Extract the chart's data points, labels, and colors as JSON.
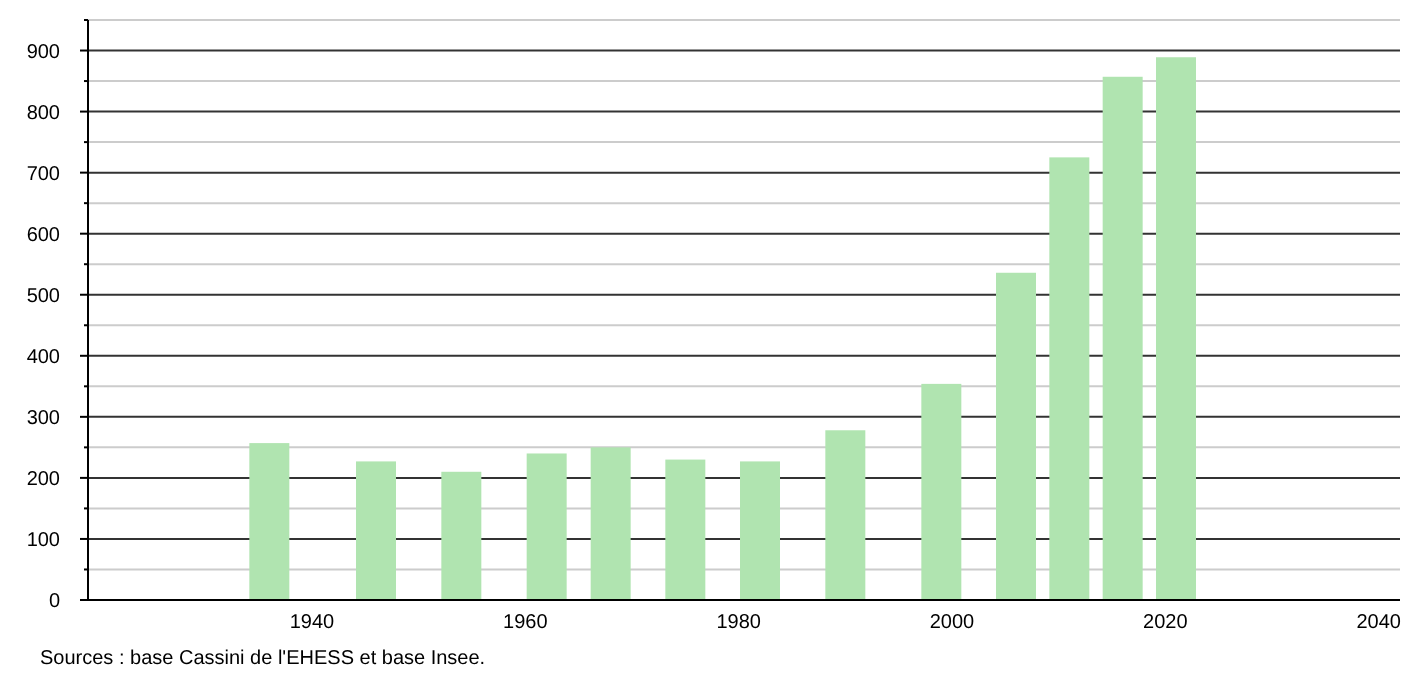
{
  "chart_data": {
    "type": "bar",
    "x": [
      1936,
      1946,
      1954,
      1962,
      1968,
      1975,
      1982,
      1990,
      1999,
      2006,
      2011,
      2016,
      2021
    ],
    "values": [
      257,
      227,
      210,
      240,
      250,
      230,
      227,
      278,
      354,
      536,
      725,
      857,
      889
    ],
    "color": "#b0e4b0",
    "xlim": [
      1919,
      2042
    ],
    "xticks": [
      1940,
      1960,
      1980,
      2000,
      2020,
      2040
    ],
    "ylim": [
      0,
      950
    ],
    "yticks": [
      0,
      {
        "value": 50,
        "label": null
      },
      100,
      {
        "value": 150,
        "label": null
      },
      200,
      {
        "value": 250,
        "label": null
      },
      300,
      {
        "value": 350,
        "label": null
      },
      400,
      {
        "value": 450,
        "label": null
      },
      500,
      {
        "value": 550,
        "label": null
      },
      600,
      {
        "value": 650,
        "label": null
      },
      700,
      {
        "value": 750,
        "label": null
      },
      800,
      {
        "value": 850,
        "label": null
      },
      900,
      {
        "value": 950,
        "label": null
      }
    ],
    "grid": "y",
    "annotations": [
      "Sources : base Cassini de l'EHESS et base Insee."
    ]
  }
}
